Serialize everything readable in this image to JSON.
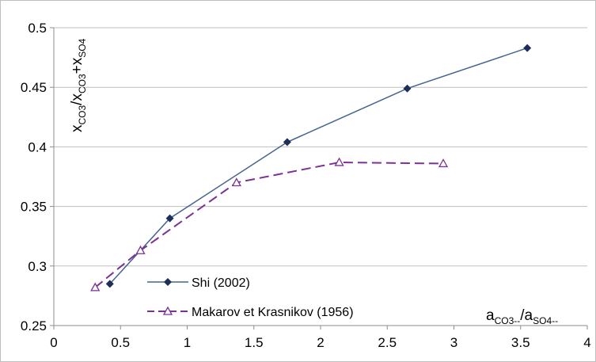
{
  "chart_data": {
    "type": "line",
    "title": "",
    "ylabel": "x_CO3/x_CO3+x_SO4",
    "ylabel_parts": {
      "base1": "x",
      "sub1": "CO3",
      "mid": "/x",
      "sub2": "CO3",
      "mid2": "+x",
      "sub3": "SO4"
    },
    "xlabel": "a_CO3--/a_SO4--",
    "xlabel_parts": {
      "base1": "a",
      "sub1": "CO3--",
      "mid": "/a",
      "sub2": "SO4--"
    },
    "xlim": [
      0,
      4
    ],
    "ylim": [
      0.25,
      0.5
    ],
    "xticks": [
      "0",
      "0.5",
      "1",
      "1.5",
      "2",
      "2.5",
      "3",
      "3.5",
      "4"
    ],
    "yticks": [
      "0.25",
      "0.3",
      "0.35",
      "0.4",
      "0.45",
      "0.5"
    ],
    "grid": "horizontal",
    "legend_position": "lower-left inside",
    "series": [
      {
        "name": "Shi (2002)",
        "color": "#44648f",
        "marker_color": "#1f2d5a",
        "line_style": "solid",
        "marker": "diamond-filled",
        "x": [
          0.42,
          0.87,
          1.75,
          2.65,
          3.55
        ],
        "y": [
          0.285,
          0.34,
          0.404,
          0.449,
          0.483
        ]
      },
      {
        "name": "Makarov et Krasnikov (1956)",
        "color": "#7b3294",
        "marker_color": "#7b3294",
        "line_style": "dashed",
        "marker": "triangle-open",
        "x": [
          0.31,
          0.65,
          1.37,
          2.14,
          2.92
        ],
        "y": [
          0.282,
          0.313,
          0.37,
          0.387,
          0.386
        ]
      }
    ]
  }
}
